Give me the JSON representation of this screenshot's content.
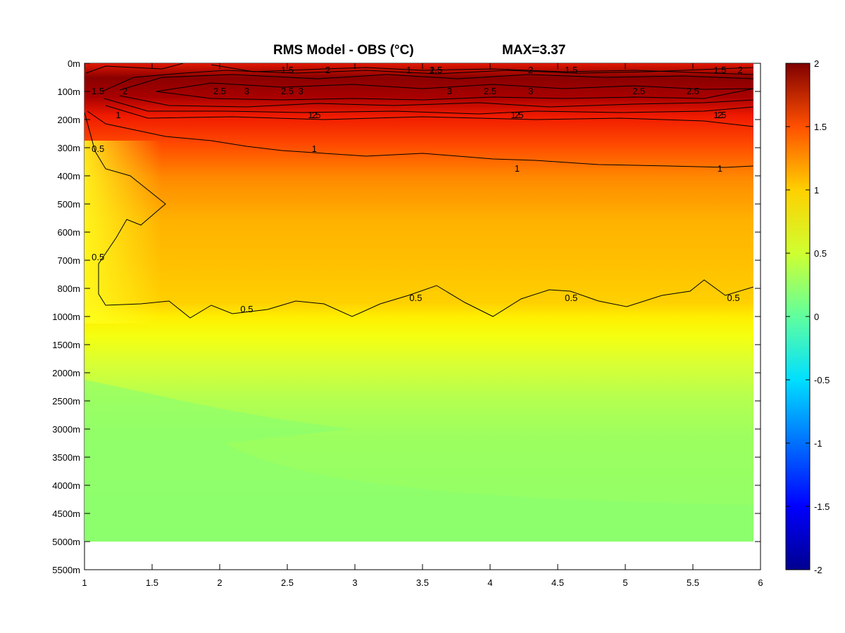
{
  "chart_data": {
    "type": "heatmap",
    "title": "RMS Model - OBS (°C)",
    "annotation": "MAX=3.37",
    "x_ticks": [
      "1",
      "1.5",
      "2",
      "2.5",
      "3",
      "3.5",
      "4",
      "4.5",
      "5",
      "5.5",
      "6"
    ],
    "xlim": [
      1,
      6
    ],
    "y_tick_labels": [
      "0m",
      "100m",
      "200m",
      "300m",
      "400m",
      "500m",
      "600m",
      "700m",
      "800m",
      "1000m",
      "1500m",
      "2000m",
      "2500m",
      "3000m",
      "3500m",
      "4000m",
      "4500m",
      "5000m",
      "5500m"
    ],
    "y_data_extent_label": "5000m",
    "colorbar": {
      "ticks": [
        "2",
        "1.5",
        "1",
        "0.5",
        "0",
        "-0.5",
        "-1",
        "-1.5",
        "-2"
      ],
      "range": [
        -2,
        2
      ],
      "colormap": "jet"
    },
    "contour_levels": [
      0.5,
      1,
      1.5,
      2,
      2.5,
      3
    ],
    "contour_labels": [
      {
        "text": "1.5",
        "x": 2.5,
        "y": "0m"
      },
      {
        "text": "2",
        "x": 2.8,
        "y": "0m"
      },
      {
        "text": "1",
        "x": 3.4,
        "y": "0m"
      },
      {
        "text": "1.5",
        "x": 3.6,
        "y": "0m"
      },
      {
        "text": "1.5",
        "x": 4.6,
        "y": "0m"
      },
      {
        "text": "1.5",
        "x": 5.7,
        "y": "0m"
      },
      {
        "text": "2",
        "x": 4.3,
        "y": "0m"
      },
      {
        "text": "2.5",
        "x": 3.6,
        "y": "0m"
      },
      {
        "text": "2",
        "x": 5.85,
        "y": "0m"
      },
      {
        "text": "1.5",
        "x": 1.1,
        "y": "100m"
      },
      {
        "text": "2",
        "x": 1.3,
        "y": "100m"
      },
      {
        "text": "2.5",
        "x": 2.0,
        "y": "100m"
      },
      {
        "text": "3",
        "x": 2.2,
        "y": "100m"
      },
      {
        "text": "3",
        "x": 2.6,
        "y": "100m"
      },
      {
        "text": "3",
        "x": 3.7,
        "y": "100m"
      },
      {
        "text": "3",
        "x": 4.3,
        "y": "100m"
      },
      {
        "text": "2.5",
        "x": 5.1,
        "y": "100m"
      },
      {
        "text": "2.5",
        "x": 2.5,
        "y": "100m"
      },
      {
        "text": "2.5",
        "x": 4.0,
        "y": "100m"
      },
      {
        "text": "2.5",
        "x": 5.5,
        "y": "100m"
      },
      {
        "text": "2",
        "x": 2.7,
        "y": "200m"
      },
      {
        "text": "2",
        "x": 4.2,
        "y": "200m"
      },
      {
        "text": "2",
        "x": 5.7,
        "y": "200m"
      },
      {
        "text": "1.5",
        "x": 2.7,
        "y": "200m"
      },
      {
        "text": "1.5",
        "x": 4.2,
        "y": "200m"
      },
      {
        "text": "1.5",
        "x": 5.7,
        "y": "200m"
      },
      {
        "text": "1",
        "x": 1.25,
        "y": "200m"
      },
      {
        "text": "1",
        "x": 2.7,
        "y": "300m"
      },
      {
        "text": "1",
        "x": 4.2,
        "y": "400m"
      },
      {
        "text": "1",
        "x": 5.7,
        "y": "400m"
      },
      {
        "text": "0.5",
        "x": 1.1,
        "y": "300m"
      },
      {
        "text": "0.5",
        "x": 1.1,
        "y": "700m"
      },
      {
        "text": "0.5",
        "x": 2.2,
        "y": "1000m"
      },
      {
        "text": "0.5",
        "x": 3.45,
        "y": "800m"
      },
      {
        "text": "0.5",
        "x": 4.6,
        "y": "800m"
      },
      {
        "text": "0.5",
        "x": 5.8,
        "y": "800m"
      }
    ]
  }
}
